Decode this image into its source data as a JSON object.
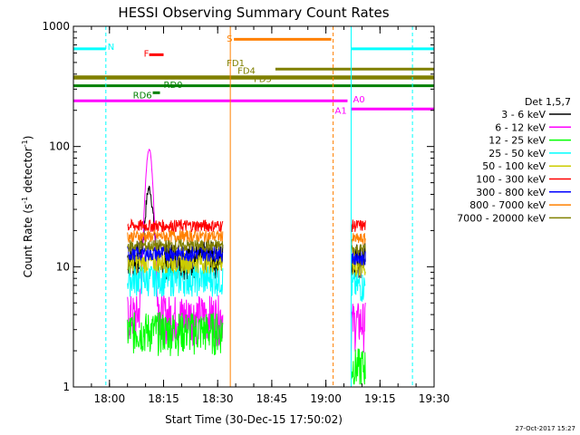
{
  "chart_data": {
    "type": "line",
    "title": "HESSI Observing Summary Count Rates",
    "xlabel": "Start Time (30-Dec-15 17:50:02)",
    "ylabel_prefix": "Count Rate (s",
    "ylabel_exp": "-1",
    "ylabel_mid": " detector",
    "ylabel_suffix": ")",
    "footer_date": "27-Oct-2017 15:27",
    "y_scale": "log",
    "ylim": [
      1,
      1000
    ],
    "xlim_minutes": [
      0,
      100
    ],
    "x_ticks": [
      {
        "minutes": 10,
        "label": "18:00"
      },
      {
        "minutes": 25,
        "label": "18:15"
      },
      {
        "minutes": 40,
        "label": "18:30"
      },
      {
        "minutes": 55,
        "label": "18:45"
      },
      {
        "minutes": 70,
        "label": "19:00"
      },
      {
        "minutes": 85,
        "label": "19:15"
      },
      {
        "minutes": 100,
        "label": "19:30"
      }
    ],
    "y_ticks": [
      {
        "value": 1,
        "label": "1"
      },
      {
        "value": 10,
        "label": "10"
      },
      {
        "value": 100,
        "label": "100"
      },
      {
        "value": 1000,
        "label": "1000"
      }
    ],
    "legend_title": "Det 1,5,7",
    "legend_position": "right",
    "series": [
      {
        "name": "3 - 6 keV",
        "color": "#000000",
        "base": 12,
        "jitter": 0.35,
        "flare_peak": 45,
        "post_level": 12
      },
      {
        "name": "6 - 12 keV",
        "color": "#ff00ff",
        "base": 4,
        "jitter": 0.45,
        "flare_peak": 95,
        "post_level": 3.5
      },
      {
        "name": "12 - 25 keV",
        "color": "#00ff00",
        "base": 3,
        "jitter": 0.4,
        "flare_peak": 3,
        "post_level": 1.5
      },
      {
        "name": "25 - 50 keV",
        "color": "#00ffff",
        "base": 8,
        "jitter": 0.3,
        "flare_peak": 8,
        "post_level": 7
      },
      {
        "name": "50 - 100 keV",
        "color": "#cccc00",
        "base": 11,
        "jitter": 0.2,
        "flare_peak": 11,
        "post_level": 10
      },
      {
        "name": "100 - 300 keV",
        "color": "#ff0000",
        "base": 22,
        "jitter": 0.12,
        "flare_peak": 22,
        "post_level": 22
      },
      {
        "name": "300 - 800 keV",
        "color": "#0000ff",
        "base": 13,
        "jitter": 0.15,
        "flare_peak": 13,
        "post_level": 12
      },
      {
        "name": "800 - 7000 keV",
        "color": "#ff8000",
        "base": 18,
        "jitter": 0.12,
        "flare_peak": 18,
        "post_level": 17
      },
      {
        "name": "7000 - 20000 keV",
        "color": "#808000",
        "base": 15,
        "jitter": 0.12,
        "flare_peak": 15,
        "post_level": 14
      }
    ],
    "data_segments_minutes": [
      [
        15,
        41.5
      ],
      [
        77,
        81
      ]
    ],
    "flag_bars": [
      {
        "label": "N",
        "color": "#00ffff",
        "level": 650,
        "ranges": [
          [
            0,
            9
          ]
        ],
        "label_at": 9.5,
        "label_level": 680
      },
      {
        "label": "N",
        "color": "#00ffff",
        "level": 650,
        "ranges": [
          [
            77,
            100
          ]
        ],
        "label_at": -1,
        "label_level": 0
      },
      {
        "label": "F",
        "color": "#ff0000",
        "level": 580,
        "ranges": [
          [
            21,
            25
          ]
        ],
        "label_at": 19.5,
        "label_level": 600
      },
      {
        "label": "S",
        "color": "#ff8000",
        "level": 780,
        "ranges": [
          [
            44.5,
            71.5
          ]
        ],
        "label_at": 42.5,
        "label_level": 800
      },
      {
        "label": "FD1",
        "color": "#808000",
        "level": 380,
        "ranges": [
          [
            0,
            100
          ]
        ],
        "label_at": 42.5,
        "label_level": 500
      },
      {
        "label": "FD4",
        "color": "#808000",
        "level": 440,
        "ranges": [
          [
            56,
            100
          ]
        ],
        "label_at": 45.5,
        "label_level": 430
      },
      {
        "label": "FD5",
        "color": "#808000",
        "level": 370,
        "ranges": [
          [
            0,
            100
          ]
        ],
        "label_at": 50,
        "label_level": 370
      },
      {
        "label": "RD0",
        "color": "#008000",
        "level": 320,
        "ranges": [
          [
            0,
            100
          ]
        ],
        "label_at": 25,
        "label_level": 330
      },
      {
        "label": "RD6",
        "color": "#008000",
        "level": 280,
        "ranges": [
          [
            22,
            24
          ]
        ],
        "label_at": 16.5,
        "label_level": 270
      },
      {
        "label": "A0",
        "color": "#ff00ff",
        "level": 240,
        "ranges": [
          [
            0,
            76
          ]
        ],
        "label_at": 77.5,
        "label_level": 250
      },
      {
        "label": "A1",
        "color": "#ff00ff",
        "level": 205,
        "ranges": [
          [
            77,
            100
          ]
        ],
        "label_at": 72.5,
        "label_level": 200
      }
    ],
    "vertical_markers": [
      {
        "minutes": 9,
        "color": "#00ffff",
        "style": "dashed"
      },
      {
        "minutes": 77,
        "color": "#00ffff",
        "style": "solid"
      },
      {
        "minutes": 94,
        "color": "#00ffff",
        "style": "dashed"
      },
      {
        "minutes": 43.5,
        "color": "#ff8000",
        "style": "solid"
      },
      {
        "minutes": 72,
        "color": "#ff8000",
        "style": "dashed"
      }
    ]
  }
}
